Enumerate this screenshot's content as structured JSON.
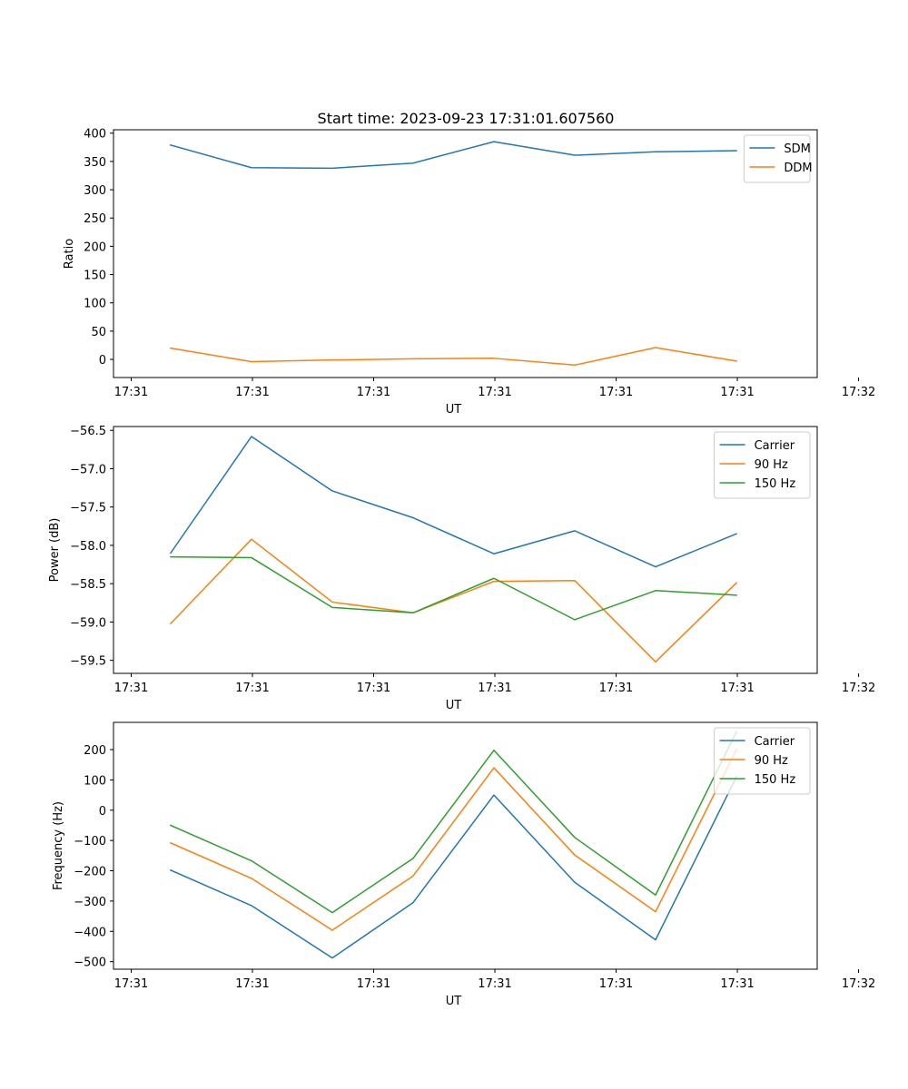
{
  "figure_title": "Start time: 2023-09-23 17:31:01.607560",
  "colors": {
    "blue": "#1f77b4",
    "orange": "#ff7f0e",
    "green": "#2ca02c"
  },
  "chart_data": [
    {
      "type": "line",
      "title": "Start time: 2023-09-23 17:31:01.607560",
      "xlabel": "UT",
      "ylabel": "Ratio",
      "x": [
        1,
        2,
        3,
        4,
        5,
        6,
        7,
        8
      ],
      "xlim": [
        0.293,
        9.0
      ],
      "xticks": [
        0.512,
        2.012,
        3.512,
        5.012,
        6.512,
        8.012,
        9.512
      ],
      "xtick_labels": [
        "17:31",
        "17:31",
        "17:31",
        "17:31",
        "17:31",
        "17:31",
        "17:32"
      ],
      "ylim": [
        -32,
        406
      ],
      "yticks": [
        0,
        50,
        100,
        150,
        200,
        250,
        300,
        350,
        400
      ],
      "ytick_labels": [
        "0",
        "50",
        "100",
        "150",
        "200",
        "250",
        "300",
        "350",
        "400"
      ],
      "legend_position": "top-right",
      "series": [
        {
          "name": "SDM",
          "color": "#1f77b4",
          "values": [
            379,
            339,
            338,
            347,
            385,
            361,
            367,
            369
          ]
        },
        {
          "name": "DDM",
          "color": "#ff7f0e",
          "values": [
            20,
            -4,
            -1,
            1,
            2,
            -10,
            21,
            -3
          ]
        }
      ]
    },
    {
      "type": "line",
      "title": "",
      "xlabel": "UT",
      "ylabel": "Power (dB)",
      "x": [
        1,
        2,
        3,
        4,
        5,
        6,
        7,
        8
      ],
      "xlim": [
        0.293,
        9.0
      ],
      "xticks": [
        0.512,
        2.012,
        3.512,
        5.012,
        6.512,
        8.012,
        9.512
      ],
      "xtick_labels": [
        "17:31",
        "17:31",
        "17:31",
        "17:31",
        "17:31",
        "17:31",
        "17:32"
      ],
      "ylim": [
        -59.67,
        -56.45
      ],
      "yticks": [
        -59.5,
        -59.0,
        -58.5,
        -58.0,
        -57.5,
        -57.0,
        -56.5
      ],
      "ytick_labels": [
        "−59.5",
        "−59.0",
        "−58.5",
        "−58.0",
        "−57.5",
        "−57.0",
        "−56.5"
      ],
      "legend_position": "top-right",
      "series": [
        {
          "name": "Carrier",
          "color": "#1f77b4",
          "values": [
            -58.1,
            -56.58,
            -57.29,
            -57.64,
            -58.11,
            -57.81,
            -58.28,
            -57.85
          ]
        },
        {
          "name": "90 Hz",
          "color": "#ff7f0e",
          "values": [
            -59.02,
            -57.92,
            -58.74,
            -58.88,
            -58.47,
            -58.46,
            -59.52,
            -58.49
          ]
        },
        {
          "name": "150 Hz",
          "color": "#2ca02c",
          "values": [
            -58.15,
            -58.16,
            -58.81,
            -58.88,
            -58.43,
            -58.97,
            -58.59,
            -58.65
          ]
        }
      ]
    },
    {
      "type": "line",
      "title": "",
      "xlabel": "UT",
      "ylabel": "Frequency (Hz)",
      "x": [
        1,
        2,
        3,
        4,
        5,
        6,
        7,
        8
      ],
      "xlim": [
        0.293,
        9.0
      ],
      "xticks": [
        0.512,
        2.012,
        3.512,
        5.012,
        6.512,
        8.012,
        9.512
      ],
      "xtick_labels": [
        "17:31",
        "17:31",
        "17:31",
        "17:31",
        "17:31",
        "17:31",
        "17:32"
      ],
      "ylim": [
        -525,
        290
      ],
      "yticks": [
        -500,
        -400,
        -300,
        -200,
        -100,
        0,
        100,
        200
      ],
      "ytick_labels": [
        "−500",
        "−400",
        "−300",
        "−200",
        "−100",
        "0",
        "100",
        "200"
      ],
      "legend_position": "top-right",
      "series": [
        {
          "name": "Carrier",
          "color": "#1f77b4",
          "values": [
            -198,
            -315,
            -488,
            -305,
            50,
            -238,
            -428,
            110
          ]
        },
        {
          "name": "90 Hz",
          "color": "#ff7f0e",
          "values": [
            -108,
            -225,
            -396,
            -217,
            140,
            -148,
            -335,
            200
          ]
        },
        {
          "name": "150 Hz",
          "color": "#2ca02c",
          "values": [
            -50,
            -167,
            -338,
            -159,
            198,
            -90,
            -280,
            259
          ]
        }
      ]
    }
  ]
}
